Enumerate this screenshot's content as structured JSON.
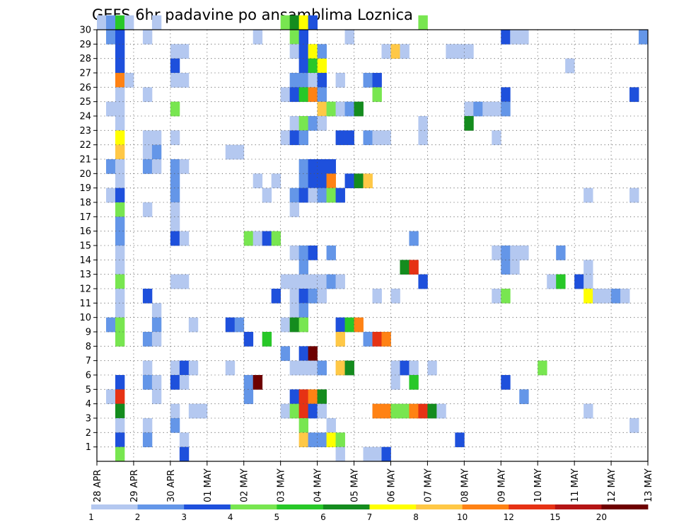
{
  "chart_data": {
    "type": "heatmap",
    "title": "GEFS 6hr padavine po ansamblima Loznica",
    "x_ticks": [
      "28 APR",
      "29 APR",
      "30 APR",
      "01 MAY",
      "02 MAY",
      "03 MAY",
      "04 MAY",
      "05 MAY",
      "06 MAY",
      "07 MAY",
      "08 MAY",
      "09 MAY",
      "10 MAY",
      "11 MAY",
      "12 MAY",
      "13 MAY"
    ],
    "y_ticks": [
      "1",
      "2",
      "3",
      "4",
      "5",
      "6",
      "7",
      "8",
      "9",
      "10",
      "11",
      "12",
      "13",
      "14",
      "15",
      "16",
      "17",
      "18",
      "19",
      "20",
      "21",
      "22",
      "23",
      "24",
      "25",
      "26",
      "27",
      "28",
      "29",
      "30"
    ],
    "x_range": [
      "28 APR",
      "13 MAY"
    ],
    "y_range": [
      1,
      30
    ],
    "grid": true,
    "colorbar": {
      "labels": [
        "1",
        "2",
        "3",
        "4",
        "5",
        "6",
        "7",
        "8",
        "10",
        "12",
        "15",
        "20"
      ],
      "colors": [
        "#b4c8f0",
        "#6496e8",
        "#1e50dc",
        "#78e650",
        "#28c828",
        "#148c1e",
        "#ffff00",
        "#ffc846",
        "#ff8214",
        "#e63214",
        "#b41414",
        "#6e0000"
      ]
    },
    "cells_note": "each cell: [day_offset_from_28APR_00z (steps of 0.25), member, color_index]",
    "cells": [
      [
        0,
        30,
        0
      ],
      [
        0.25,
        30,
        1
      ],
      [
        0.5,
        30,
        4
      ],
      [
        0.75,
        30,
        0
      ],
      [
        1.5,
        30,
        0
      ],
      [
        5.0,
        30,
        3
      ],
      [
        5.25,
        30,
        5
      ],
      [
        5.5,
        30,
        6
      ],
      [
        5.75,
        30,
        2
      ],
      [
        8.75,
        30,
        3
      ],
      [
        0.25,
        29,
        1
      ],
      [
        0.5,
        29,
        2
      ],
      [
        1.25,
        29,
        0
      ],
      [
        4.25,
        29,
        0
      ],
      [
        5.25,
        29,
        3
      ],
      [
        5.5,
        29,
        2
      ],
      [
        6.75,
        29,
        0
      ],
      [
        11.0,
        29,
        2
      ],
      [
        11.25,
        29,
        0
      ],
      [
        11.5,
        29,
        0
      ],
      [
        14.75,
        29,
        1
      ],
      [
        0.5,
        28,
        2
      ],
      [
        2.0,
        28,
        0
      ],
      [
        2.25,
        28,
        0
      ],
      [
        5.25,
        28,
        0
      ],
      [
        5.5,
        28,
        2
      ],
      [
        5.75,
        28,
        6
      ],
      [
        6.0,
        28,
        1
      ],
      [
        7.75,
        28,
        0
      ],
      [
        8.0,
        28,
        7
      ],
      [
        8.25,
        28,
        0
      ],
      [
        9.5,
        28,
        0
      ],
      [
        9.75,
        28,
        0
      ],
      [
        10.0,
        28,
        0
      ],
      [
        0.5,
        27,
        2
      ],
      [
        2.0,
        27,
        2
      ],
      [
        5.5,
        27,
        2
      ],
      [
        5.75,
        27,
        4
      ],
      [
        6.0,
        27,
        6
      ],
      [
        12.75,
        27,
        0
      ],
      [
        0.5,
        26,
        8
      ],
      [
        0.75,
        26,
        0
      ],
      [
        2.0,
        26,
        0
      ],
      [
        2.25,
        26,
        0
      ],
      [
        5.25,
        26,
        1
      ],
      [
        5.5,
        26,
        1
      ],
      [
        5.75,
        26,
        0
      ],
      [
        6.0,
        26,
        2
      ],
      [
        6.5,
        26,
        0
      ],
      [
        7.25,
        26,
        1
      ],
      [
        7.5,
        26,
        2
      ],
      [
        0.5,
        25,
        0
      ],
      [
        1.25,
        25,
        0
      ],
      [
        5.0,
        25,
        0
      ],
      [
        5.25,
        25,
        2
      ],
      [
        5.5,
        25,
        4
      ],
      [
        5.75,
        25,
        8
      ],
      [
        6.0,
        25,
        1
      ],
      [
        7.5,
        25,
        3
      ],
      [
        11.0,
        25,
        2
      ],
      [
        14.5,
        25,
        2
      ],
      [
        0.25,
        24,
        0
      ],
      [
        0.5,
        24,
        0
      ],
      [
        2.0,
        24,
        3
      ],
      [
        6.0,
        24,
        7
      ],
      [
        6.25,
        24,
        3
      ],
      [
        6.5,
        24,
        0
      ],
      [
        6.75,
        24,
        1
      ],
      [
        7.0,
        24,
        5
      ],
      [
        10.0,
        24,
        0
      ],
      [
        10.25,
        24,
        1
      ],
      [
        10.5,
        24,
        0
      ],
      [
        10.75,
        24,
        0
      ],
      [
        11.0,
        24,
        1
      ],
      [
        0.5,
        23,
        0
      ],
      [
        5.25,
        23,
        0
      ],
      [
        5.5,
        23,
        3
      ],
      [
        5.75,
        23,
        1
      ],
      [
        6.0,
        23,
        0
      ],
      [
        8.75,
        23,
        0
      ],
      [
        10.0,
        23,
        5
      ],
      [
        0.5,
        22,
        6
      ],
      [
        1.25,
        22,
        0
      ],
      [
        1.5,
        22,
        0
      ],
      [
        2.0,
        22,
        0
      ],
      [
        5.0,
        22,
        0
      ],
      [
        5.25,
        22,
        2
      ],
      [
        5.5,
        22,
        1
      ],
      [
        6.5,
        22,
        2
      ],
      [
        6.75,
        22,
        2
      ],
      [
        7.25,
        22,
        1
      ],
      [
        7.5,
        22,
        0
      ],
      [
        7.75,
        22,
        0
      ],
      [
        8.75,
        22,
        0
      ],
      [
        10.75,
        22,
        0
      ],
      [
        0.5,
        21,
        7
      ],
      [
        1.25,
        21,
        0
      ],
      [
        1.5,
        21,
        1
      ],
      [
        3.5,
        21,
        0
      ],
      [
        3.75,
        21,
        0
      ],
      [
        0.25,
        20,
        1
      ],
      [
        0.5,
        20,
        0
      ],
      [
        1.25,
        20,
        1
      ],
      [
        1.5,
        20,
        0
      ],
      [
        2.0,
        20,
        1
      ],
      [
        2.25,
        20,
        0
      ],
      [
        5.5,
        20,
        1
      ],
      [
        5.75,
        20,
        2
      ],
      [
        6.0,
        20,
        2
      ],
      [
        6.25,
        20,
        2
      ],
      [
        0.5,
        19,
        0
      ],
      [
        2.0,
        19,
        1
      ],
      [
        4.25,
        19,
        0
      ],
      [
        4.75,
        19,
        0
      ],
      [
        5.5,
        19,
        1
      ],
      [
        5.75,
        19,
        2
      ],
      [
        6.0,
        19,
        2
      ],
      [
        6.25,
        19,
        8
      ],
      [
        6.75,
        19,
        2
      ],
      [
        7.0,
        19,
        5
      ],
      [
        7.25,
        19,
        7
      ],
      [
        0.25,
        18,
        0
      ],
      [
        0.5,
        18,
        2
      ],
      [
        2.0,
        18,
        1
      ],
      [
        4.5,
        18,
        0
      ],
      [
        5.25,
        18,
        1
      ],
      [
        5.5,
        18,
        2
      ],
      [
        5.75,
        18,
        0
      ],
      [
        6.0,
        18,
        1
      ],
      [
        6.25,
        18,
        3
      ],
      [
        6.5,
        18,
        2
      ],
      [
        13.25,
        18,
        0
      ],
      [
        14.5,
        18,
        0
      ],
      [
        0.5,
        17,
        3
      ],
      [
        1.25,
        17,
        0
      ],
      [
        2.0,
        17,
        0
      ],
      [
        5.25,
        17,
        0
      ],
      [
        0.5,
        16,
        1
      ],
      [
        2.0,
        16,
        0
      ],
      [
        0.5,
        15,
        1
      ],
      [
        2.0,
        15,
        2
      ],
      [
        2.25,
        15,
        0
      ],
      [
        4.0,
        15,
        3
      ],
      [
        4.25,
        15,
        0
      ],
      [
        4.5,
        15,
        2
      ],
      [
        4.75,
        15,
        3
      ],
      [
        8.5,
        15,
        1
      ],
      [
        0.5,
        14,
        0
      ],
      [
        5.25,
        14,
        0
      ],
      [
        5.5,
        14,
        1
      ],
      [
        5.75,
        14,
        2
      ],
      [
        6.25,
        14,
        1
      ],
      [
        10.75,
        14,
        0
      ],
      [
        11.0,
        14,
        1
      ],
      [
        11.25,
        14,
        0
      ],
      [
        11.5,
        14,
        0
      ],
      [
        12.5,
        14,
        1
      ],
      [
        0.5,
        13,
        0
      ],
      [
        5.5,
        13,
        1
      ],
      [
        8.25,
        13,
        5
      ],
      [
        8.5,
        13,
        9
      ],
      [
        11.0,
        13,
        1
      ],
      [
        11.25,
        13,
        0
      ],
      [
        13.25,
        13,
        0
      ],
      [
        0.5,
        12,
        3
      ],
      [
        2.0,
        12,
        0
      ],
      [
        2.25,
        12,
        0
      ],
      [
        5.0,
        12,
        0
      ],
      [
        5.25,
        12,
        0
      ],
      [
        5.5,
        12,
        0
      ],
      [
        5.75,
        12,
        0
      ],
      [
        6.0,
        12,
        0
      ],
      [
        6.25,
        12,
        1
      ],
      [
        6.5,
        12,
        0
      ],
      [
        8.75,
        12,
        2
      ],
      [
        12.25,
        12,
        0
      ],
      [
        12.5,
        12,
        4
      ],
      [
        13.0,
        12,
        2
      ],
      [
        13.25,
        12,
        0
      ],
      [
        0.5,
        11,
        0
      ],
      [
        1.25,
        11,
        2
      ],
      [
        4.75,
        11,
        2
      ],
      [
        5.25,
        11,
        0
      ],
      [
        5.5,
        11,
        2
      ],
      [
        5.75,
        11,
        1
      ],
      [
        6.0,
        11,
        0
      ],
      [
        7.5,
        11,
        0
      ],
      [
        8.0,
        11,
        0
      ],
      [
        10.75,
        11,
        0
      ],
      [
        11.0,
        11,
        3
      ],
      [
        13.25,
        11,
        6
      ],
      [
        13.5,
        11,
        0
      ],
      [
        13.75,
        11,
        0
      ],
      [
        14.0,
        11,
        1
      ],
      [
        14.25,
        11,
        0
      ],
      [
        0.5,
        10,
        0
      ],
      [
        1.5,
        10,
        0
      ],
      [
        5.25,
        10,
        0
      ],
      [
        5.5,
        10,
        1
      ],
      [
        0.25,
        9,
        1
      ],
      [
        0.5,
        9,
        3
      ],
      [
        1.5,
        9,
        1
      ],
      [
        2.5,
        9,
        0
      ],
      [
        3.5,
        9,
        2
      ],
      [
        3.75,
        9,
        1
      ],
      [
        5.0,
        9,
        0
      ],
      [
        5.25,
        9,
        5
      ],
      [
        5.5,
        9,
        3
      ],
      [
        6.5,
        9,
        2
      ],
      [
        6.75,
        9,
        4
      ],
      [
        7.0,
        9,
        8
      ],
      [
        0.5,
        8,
        3
      ],
      [
        1.25,
        8,
        1
      ],
      [
        1.5,
        8,
        0
      ],
      [
        4.0,
        8,
        2
      ],
      [
        4.5,
        8,
        4
      ],
      [
        6.5,
        8,
        7
      ],
      [
        7.25,
        8,
        1
      ],
      [
        7.5,
        8,
        9
      ],
      [
        7.75,
        8,
        8
      ],
      [
        5.0,
        7,
        1
      ],
      [
        5.5,
        7,
        2
      ],
      [
        5.75,
        7,
        11
      ],
      [
        1.25,
        6,
        0
      ],
      [
        2.0,
        6,
        0
      ],
      [
        2.25,
        6,
        2
      ],
      [
        2.5,
        6,
        0
      ],
      [
        3.5,
        6,
        0
      ],
      [
        5.25,
        6,
        0
      ],
      [
        5.5,
        6,
        0
      ],
      [
        5.75,
        6,
        0
      ],
      [
        6.0,
        6,
        1
      ],
      [
        6.5,
        6,
        7
      ],
      [
        6.75,
        6,
        5
      ],
      [
        8.0,
        6,
        0
      ],
      [
        8.25,
        6,
        2
      ],
      [
        8.5,
        6,
        0
      ],
      [
        9.0,
        6,
        0
      ],
      [
        12.0,
        6,
        3
      ],
      [
        0.5,
        5,
        2
      ],
      [
        1.25,
        5,
        1
      ],
      [
        1.5,
        5,
        0
      ],
      [
        2.0,
        5,
        2
      ],
      [
        2.25,
        5,
        0
      ],
      [
        4.0,
        5,
        1
      ],
      [
        4.25,
        5,
        11
      ],
      [
        8.0,
        5,
        0
      ],
      [
        8.5,
        5,
        4
      ],
      [
        11.0,
        5,
        2
      ],
      [
        0.25,
        4,
        0
      ],
      [
        0.5,
        4,
        9
      ],
      [
        1.5,
        4,
        0
      ],
      [
        4.0,
        4,
        1
      ],
      [
        5.25,
        4,
        2
      ],
      [
        5.5,
        4,
        9
      ],
      [
        5.75,
        4,
        8
      ],
      [
        6.0,
        4,
        5
      ],
      [
        11.5,
        4,
        1
      ],
      [
        0.5,
        3,
        5
      ],
      [
        2.0,
        3,
        0
      ],
      [
        2.5,
        3,
        0
      ],
      [
        2.75,
        3,
        0
      ],
      [
        5.0,
        3,
        0
      ],
      [
        5.25,
        3,
        3
      ],
      [
        5.5,
        3,
        9
      ],
      [
        5.75,
        3,
        2
      ],
      [
        6.0,
        3,
        0
      ],
      [
        7.5,
        3,
        8
      ],
      [
        7.75,
        3,
        8
      ],
      [
        8.0,
        3,
        3
      ],
      [
        8.25,
        3,
        3
      ],
      [
        8.5,
        3,
        8
      ],
      [
        8.75,
        3,
        9
      ],
      [
        9.0,
        3,
        5
      ],
      [
        9.25,
        3,
        0
      ],
      [
        13.25,
        3,
        0
      ],
      [
        0.5,
        2,
        0
      ],
      [
        1.25,
        2,
        0
      ],
      [
        2.0,
        2,
        1
      ],
      [
        5.5,
        2,
        3
      ],
      [
        6.25,
        2,
        0
      ],
      [
        14.5,
        2,
        0
      ],
      [
        0.5,
        1,
        2
      ],
      [
        1.25,
        1,
        1
      ],
      [
        2.25,
        1,
        0
      ],
      [
        5.5,
        1,
        7
      ],
      [
        5.75,
        1,
        1
      ],
      [
        6.0,
        1,
        1
      ],
      [
        6.25,
        1,
        6
      ],
      [
        6.5,
        1,
        3
      ],
      [
        9.75,
        1,
        2
      ],
      [
        0.5,
        0,
        3
      ],
      [
        2.25,
        0,
        2
      ],
      [
        6.5,
        0,
        0
      ],
      [
        7.25,
        0,
        0
      ],
      [
        7.5,
        0,
        0
      ],
      [
        7.75,
        0,
        2
      ]
    ]
  }
}
